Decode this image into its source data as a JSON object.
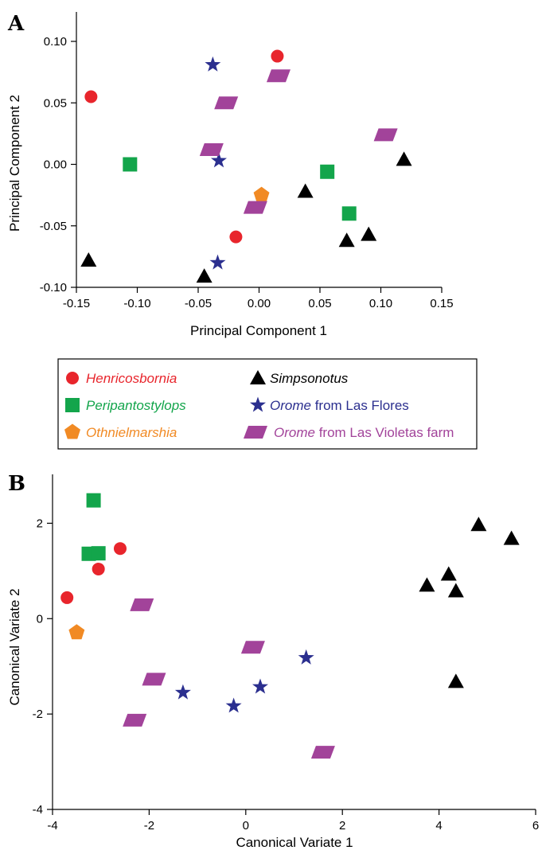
{
  "panels": {
    "a": {
      "label": "A"
    },
    "b": {
      "label": "B"
    }
  },
  "colors": {
    "Henricosbornia": "#e8252c",
    "Peripantostylops": "#13a54b",
    "Othnielmarshia": "#f18a24",
    "Simpsonotus": "#000000",
    "Orome_flores": "#2b2f8f",
    "Orome_violetas": "#a2439a"
  },
  "legend": {
    "items": [
      {
        "key": "Henricosbornia",
        "marker": "circle",
        "parts": [
          {
            "text": "Henricosbornia",
            "italic": true,
            "color": "#e8252c"
          }
        ]
      },
      {
        "key": "Simpsonotus",
        "marker": "triangle",
        "parts": [
          {
            "text": "Simpsonotus",
            "italic": true,
            "color": "#000000"
          }
        ]
      },
      {
        "key": "Peripantostylops",
        "marker": "square",
        "parts": [
          {
            "text": "Peripantostylops",
            "italic": true,
            "color": "#13a54b"
          }
        ]
      },
      {
        "key": "Orome_flores",
        "marker": "star",
        "parts": [
          {
            "text": "Orome",
            "italic": true,
            "color": "#2b2f8f"
          },
          {
            "text": " from Las Flores",
            "italic": false,
            "color": "#2b2f8f"
          }
        ]
      },
      {
        "key": "Othnielmarshia",
        "marker": "pentagon",
        "parts": [
          {
            "text": "Othnielmarshia",
            "italic": true,
            "color": "#f18a24"
          }
        ]
      },
      {
        "key": "Orome_violetas",
        "marker": "parallelogram",
        "parts": [
          {
            "text": "Orome",
            "italic": true,
            "color": "#a2439a"
          },
          {
            "text": " from Las Violetas farm",
            "italic": false,
            "color": "#a2439a"
          }
        ]
      }
    ]
  },
  "chart_data": [
    {
      "type": "scatter",
      "panel": "A",
      "xlabel": "Principal Component 1",
      "ylabel": "Principal Component 2",
      "xlim": [
        -0.15,
        0.15
      ],
      "ylim": [
        -0.1,
        0.1
      ],
      "xticks": [
        -0.15,
        -0.1,
        -0.05,
        0.0,
        0.05,
        0.1,
        0.15
      ],
      "yticks": [
        -0.1,
        -0.05,
        0.0,
        0.05,
        0.1
      ],
      "xtick_labels": [
        "-0.15",
        "-0.10",
        "-0.05",
        "0.00",
        "0.05",
        "0.10",
        "0.15"
      ],
      "ytick_labels": [
        "-0.10",
        "-0.05",
        "0.00",
        "0.05",
        "0.10"
      ],
      "series": [
        {
          "key": "Henricosbornia",
          "marker": "circle",
          "points": [
            [
              -0.138,
              0.055
            ],
            [
              0.015,
              0.088
            ],
            [
              -0.019,
              -0.059
            ]
          ]
        },
        {
          "key": "Peripantostylops",
          "marker": "square",
          "points": [
            [
              -0.106,
              0.0
            ],
            [
              0.056,
              -0.006
            ],
            [
              0.074,
              -0.04
            ]
          ]
        },
        {
          "key": "Othnielmarshia",
          "marker": "pentagon",
          "points": [
            [
              0.002,
              -0.025
            ]
          ]
        },
        {
          "key": "Simpsonotus",
          "marker": "triangle",
          "points": [
            [
              -0.14,
              -0.078
            ],
            [
              -0.045,
              -0.091
            ],
            [
              0.038,
              -0.022
            ],
            [
              0.072,
              -0.062
            ],
            [
              0.09,
              -0.057
            ],
            [
              0.119,
              0.004
            ]
          ]
        },
        {
          "key": "Orome_flores",
          "marker": "star",
          "points": [
            [
              -0.038,
              0.081
            ],
            [
              -0.033,
              0.003
            ],
            [
              -0.034,
              -0.08
            ]
          ]
        },
        {
          "key": "Orome_violetas",
          "marker": "parallelogram",
          "points": [
            [
              0.016,
              0.072
            ],
            [
              -0.027,
              0.05
            ],
            [
              -0.039,
              0.012
            ],
            [
              0.104,
              0.024
            ],
            [
              -0.003,
              -0.035
            ]
          ]
        }
      ]
    },
    {
      "type": "scatter",
      "panel": "B",
      "xlabel": "Canonical Variate 1",
      "ylabel": "Canonical Variate 2",
      "xlim": [
        -4,
        6
      ],
      "ylim": [
        -4,
        3
      ],
      "xticks": [
        -4,
        -2,
        0,
        2,
        4,
        6
      ],
      "yticks": [
        -4,
        -2,
        0,
        2
      ],
      "xtick_labels": [
        "-4",
        "-2",
        "0",
        "2",
        "4",
        "6"
      ],
      "ytick_labels": [
        "-4",
        "-2",
        "0",
        "2"
      ],
      "series": [
        {
          "key": "Henricosbornia",
          "marker": "circle",
          "points": [
            [
              -3.7,
              0.44
            ],
            [
              -2.6,
              1.47
            ],
            [
              -3.05,
              1.04
            ]
          ]
        },
        {
          "key": "Peripantostylops",
          "marker": "square",
          "points": [
            [
              -3.15,
              2.48
            ],
            [
              -3.25,
              1.36
            ],
            [
              -3.05,
              1.37
            ]
          ]
        },
        {
          "key": "Othnielmarshia",
          "marker": "pentagon",
          "points": [
            [
              -3.5,
              -0.29
            ]
          ]
        },
        {
          "key": "Simpsonotus",
          "marker": "triangle",
          "points": [
            [
              3.75,
              0.7
            ],
            [
              4.2,
              0.93
            ],
            [
              4.35,
              0.58
            ],
            [
              4.82,
              1.97
            ],
            [
              5.5,
              1.68
            ],
            [
              4.35,
              -1.32
            ]
          ]
        },
        {
          "key": "Orome_flores",
          "marker": "star",
          "points": [
            [
              -1.3,
              -1.55
            ],
            [
              -0.25,
              -1.83
            ],
            [
              0.3,
              -1.43
            ],
            [
              1.25,
              -0.82
            ]
          ]
        },
        {
          "key": "Orome_violetas",
          "marker": "parallelogram",
          "points": [
            [
              -2.15,
              0.29
            ],
            [
              -1.9,
              -1.27
            ],
            [
              -2.3,
              -2.13
            ],
            [
              0.15,
              -0.6
            ],
            [
              1.6,
              -2.8
            ]
          ]
        }
      ]
    }
  ]
}
